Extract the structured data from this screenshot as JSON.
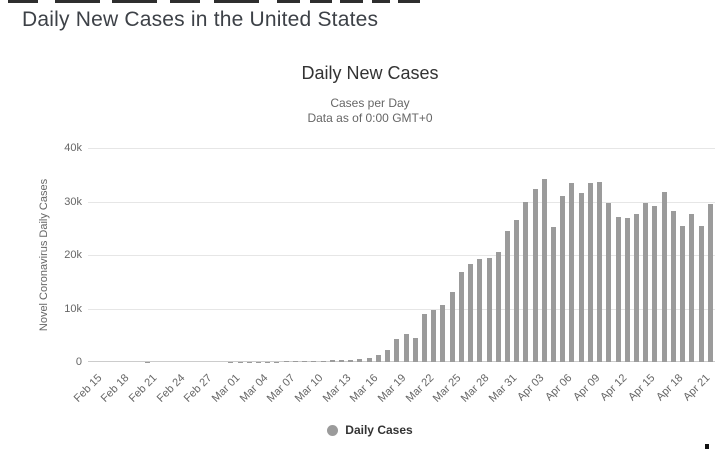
{
  "page": {
    "title": "Daily New Cases in the United States"
  },
  "chart_data": {
    "type": "bar",
    "title": "Daily New Cases",
    "subtitle": [
      "Cases per Day",
      "Data as of 0:00 GMT+0"
    ],
    "ylabel": "Novel Coronavirus Daily Cases",
    "xlabel": "",
    "ylim": [
      0,
      40000
    ],
    "grid": true,
    "bar_color": "#9b9b9b",
    "grid_color": "#e6e6e6",
    "legend": [
      "Daily Cases"
    ],
    "legend_position": "bottom-center",
    "x_label_every": 3,
    "yticks": [
      {
        "value": 0,
        "label": "0"
      },
      {
        "value": 10000,
        "label": "10k"
      },
      {
        "value": 20000,
        "label": "20k"
      },
      {
        "value": 30000,
        "label": "30k"
      },
      {
        "value": 40000,
        "label": "40k"
      }
    ],
    "categories": [
      "Feb 15",
      "Feb 16",
      "Feb 17",
      "Feb 18",
      "Feb 19",
      "Feb 20",
      "Feb 21",
      "Feb 22",
      "Feb 23",
      "Feb 24",
      "Feb 25",
      "Feb 26",
      "Feb 27",
      "Feb 28",
      "Feb 29",
      "Mar 01",
      "Mar 02",
      "Mar 03",
      "Mar 04",
      "Mar 05",
      "Mar 06",
      "Mar 07",
      "Mar 08",
      "Mar 09",
      "Mar 10",
      "Mar 11",
      "Mar 12",
      "Mar 13",
      "Mar 14",
      "Mar 15",
      "Mar 16",
      "Mar 17",
      "Mar 18",
      "Mar 19",
      "Mar 20",
      "Mar 21",
      "Mar 22",
      "Mar 23",
      "Mar 24",
      "Mar 25",
      "Mar 26",
      "Mar 27",
      "Mar 28",
      "Mar 29",
      "Mar 30",
      "Mar 31",
      "Apr 01",
      "Apr 02",
      "Apr 03",
      "Apr 04",
      "Apr 05",
      "Apr 06",
      "Apr 07",
      "Apr 08",
      "Apr 09",
      "Apr 10",
      "Apr 11",
      "Apr 12",
      "Apr 13",
      "Apr 14",
      "Apr 15",
      "Apr 16",
      "Apr 17",
      "Apr 18",
      "Apr 19",
      "Apr 20",
      "Apr 21",
      "Apr 22"
    ],
    "values": [
      0,
      0,
      0,
      0,
      0,
      0,
      20,
      0,
      0,
      0,
      10,
      10,
      10,
      10,
      10,
      20,
      20,
      30,
      30,
      70,
      70,
      100,
      100,
      150,
      250,
      250,
      350,
      450,
      400,
      600,
      750,
      1250,
      2300,
      4250,
      5200,
      4500,
      9000,
      9800,
      10600,
      13000,
      16900,
      18300,
      19200,
      19400,
      20500,
      24500,
      26600,
      29900,
      32300,
      34200,
      25300,
      31000,
      33400,
      31600,
      33500,
      33700,
      29800,
      27100,
      26900,
      27600,
      29800,
      29100,
      31800,
      28300,
      25500,
      27700,
      25500,
      29600
    ]
  }
}
